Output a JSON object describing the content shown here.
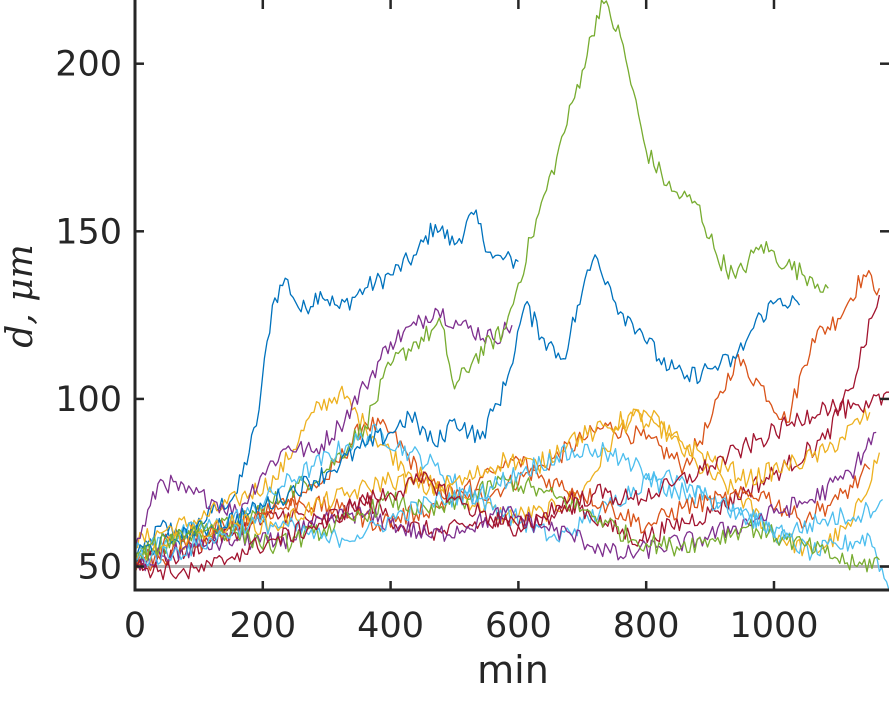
{
  "chart_data": {
    "type": "line",
    "xlabel": "min",
    "ylabel": "d, μm",
    "xlim": [
      0,
      1180
    ],
    "ylim": [
      43,
      219
    ],
    "xticks": [
      0,
      200,
      400,
      600,
      800,
      1000
    ],
    "yticks": [
      50,
      100,
      150,
      200
    ],
    "xtick_labels": [
      "0",
      "200",
      "400",
      "600",
      "800",
      "1000"
    ],
    "ytick_labels": [
      "50",
      "100",
      "150",
      "200"
    ],
    "grid": false,
    "legend": "none",
    "baseline": {
      "y": 50,
      "color": "#b0b0b0"
    },
    "series": [
      {
        "color": "#0072BD",
        "points": [
          [
            0,
            50
          ],
          [
            40,
            62
          ],
          [
            80,
            60
          ],
          [
            120,
            66
          ],
          [
            160,
            72
          ],
          [
            190,
            92
          ],
          [
            215,
            128
          ],
          [
            235,
            136
          ],
          [
            260,
            126
          ],
          [
            290,
            132
          ],
          [
            320,
            127
          ],
          [
            360,
            133
          ],
          [
            400,
            137
          ],
          [
            440,
            143
          ],
          [
            470,
            152
          ],
          [
            500,
            146
          ],
          [
            530,
            155
          ],
          [
            560,
            142
          ],
          [
            600,
            141
          ]
        ]
      },
      {
        "color": "#D95319",
        "points": [
          [
            0,
            52
          ],
          [
            60,
            58
          ],
          [
            120,
            62
          ],
          [
            180,
            64
          ],
          [
            240,
            70
          ],
          [
            300,
            76
          ],
          [
            360,
            93
          ],
          [
            400,
            90
          ],
          [
            460,
            74
          ],
          [
            520,
            70
          ],
          [
            580,
            74
          ],
          [
            640,
            80
          ],
          [
            700,
            88
          ],
          [
            740,
            92
          ],
          [
            800,
            88
          ],
          [
            860,
            80
          ],
          [
            900,
            93
          ],
          [
            940,
            112
          ],
          [
            980,
            104
          ],
          [
            1020,
            93
          ],
          [
            1060,
            118
          ],
          [
            1100,
            124
          ],
          [
            1140,
            137
          ],
          [
            1165,
            133
          ]
        ]
      },
      {
        "color": "#EDB120",
        "points": [
          [
            0,
            57
          ],
          [
            50,
            61
          ],
          [
            100,
            64
          ],
          [
            160,
            70
          ],
          [
            220,
            76
          ],
          [
            280,
            96
          ],
          [
            320,
            102
          ],
          [
            360,
            92
          ],
          [
            420,
            80
          ],
          [
            470,
            74
          ],
          [
            520,
            70
          ],
          [
            580,
            65
          ],
          [
            640,
            66
          ],
          [
            700,
            72
          ],
          [
            760,
            92
          ],
          [
            800,
            96
          ],
          [
            840,
            88
          ],
          [
            880,
            80
          ],
          [
            940,
            72
          ],
          [
            1000,
            60
          ],
          [
            1060,
            54
          ],
          [
            1120,
            62
          ],
          [
            1165,
            84
          ]
        ]
      },
      {
        "color": "#7E2F8E",
        "points": [
          [
            0,
            55
          ],
          [
            40,
            76
          ],
          [
            80,
            72
          ],
          [
            120,
            70
          ],
          [
            160,
            66
          ],
          [
            200,
            78
          ],
          [
            240,
            86
          ],
          [
            280,
            84
          ],
          [
            320,
            92
          ],
          [
            360,
            104
          ],
          [
            400,
            117
          ],
          [
            440,
            122
          ],
          [
            470,
            127
          ],
          [
            510,
            122
          ],
          [
            560,
            118
          ],
          [
            590,
            122
          ]
        ]
      },
      {
        "color": "#77AC30",
        "points": [
          [
            0,
            53
          ],
          [
            80,
            59
          ],
          [
            160,
            63
          ],
          [
            240,
            72
          ],
          [
            300,
            79
          ],
          [
            360,
            92
          ],
          [
            400,
            110
          ],
          [
            440,
            117
          ],
          [
            480,
            122
          ],
          [
            500,
            103
          ],
          [
            530,
            112
          ],
          [
            580,
            121
          ],
          [
            620,
            148
          ],
          [
            660,
            172
          ],
          [
            700,
            198
          ],
          [
            730,
            219
          ],
          [
            760,
            208
          ],
          [
            800,
            174
          ],
          [
            840,
            162
          ],
          [
            880,
            158
          ],
          [
            910,
            143
          ],
          [
            940,
            136
          ],
          [
            980,
            146
          ],
          [
            1020,
            140
          ],
          [
            1060,
            136
          ],
          [
            1085,
            133
          ]
        ]
      },
      {
        "color": "#4DBEEE",
        "points": [
          [
            0,
            54
          ],
          [
            60,
            59
          ],
          [
            120,
            62
          ],
          [
            180,
            66
          ],
          [
            230,
            74
          ],
          [
            280,
            80
          ],
          [
            330,
            86
          ],
          [
            380,
            90
          ],
          [
            430,
            84
          ],
          [
            470,
            80
          ],
          [
            520,
            72
          ],
          [
            580,
            66
          ],
          [
            620,
            62
          ],
          [
            660,
            58
          ],
          [
            700,
            63
          ],
          [
            740,
            68
          ],
          [
            800,
            76
          ],
          [
            860,
            72
          ],
          [
            920,
            70
          ],
          [
            960,
            66
          ],
          [
            1000,
            60
          ],
          [
            1060,
            54
          ],
          [
            1100,
            56
          ],
          [
            1150,
            59
          ],
          [
            1180,
            43
          ]
        ]
      },
      {
        "color": "#A2142F",
        "points": [
          [
            0,
            51
          ],
          [
            60,
            53
          ],
          [
            120,
            58
          ],
          [
            180,
            62
          ],
          [
            240,
            66
          ],
          [
            300,
            62
          ],
          [
            360,
            70
          ],
          [
            420,
            62
          ],
          [
            480,
            60
          ],
          [
            540,
            63
          ],
          [
            600,
            62
          ],
          [
            640,
            65
          ],
          [
            680,
            70
          ],
          [
            740,
            62
          ],
          [
            790,
            58
          ],
          [
            840,
            62
          ],
          [
            900,
            66
          ],
          [
            960,
            73
          ],
          [
            1020,
            80
          ],
          [
            1080,
            88
          ],
          [
            1120,
            103
          ],
          [
            1165,
            131
          ]
        ]
      },
      {
        "color": "#0072BD",
        "points": [
          [
            0,
            54
          ],
          [
            60,
            58
          ],
          [
            120,
            62
          ],
          [
            180,
            66
          ],
          [
            240,
            72
          ],
          [
            300,
            78
          ],
          [
            360,
            86
          ],
          [
            400,
            90
          ],
          [
            430,
            95
          ],
          [
            470,
            86
          ],
          [
            500,
            94
          ],
          [
            540,
            88
          ],
          [
            580,
            104
          ],
          [
            610,
            128
          ],
          [
            640,
            118
          ],
          [
            670,
            112
          ],
          [
            700,
            132
          ],
          [
            720,
            143
          ],
          [
            740,
            135
          ],
          [
            760,
            126
          ],
          [
            790,
            121
          ],
          [
            820,
            112
          ],
          [
            860,
            106
          ],
          [
            900,
            109
          ],
          [
            940,
            112
          ],
          [
            980,
            125
          ],
          [
            1010,
            130
          ],
          [
            1040,
            128
          ]
        ]
      },
      {
        "color": "#D95319",
        "points": [
          [
            0,
            48
          ],
          [
            40,
            52
          ],
          [
            80,
            56
          ],
          [
            120,
            58
          ],
          [
            160,
            62
          ],
          [
            200,
            66
          ],
          [
            260,
            69
          ],
          [
            320,
            67
          ],
          [
            380,
            63
          ],
          [
            440,
            66
          ],
          [
            500,
            70
          ],
          [
            560,
            78
          ],
          [
            600,
            82
          ],
          [
            640,
            76
          ],
          [
            700,
            72
          ],
          [
            760,
            66
          ],
          [
            800,
            62
          ],
          [
            860,
            68
          ],
          [
            920,
            70
          ],
          [
            980,
            72
          ],
          [
            1040,
            64
          ],
          [
            1100,
            70
          ],
          [
            1150,
            79
          ]
        ]
      },
      {
        "color": "#EDB120",
        "points": [
          [
            0,
            51
          ],
          [
            50,
            56
          ],
          [
            100,
            60
          ],
          [
            160,
            63
          ],
          [
            220,
            62
          ],
          [
            280,
            68
          ],
          [
            340,
            72
          ],
          [
            400,
            76
          ],
          [
            460,
            73
          ],
          [
            520,
            76
          ],
          [
            580,
            82
          ],
          [
            630,
            80
          ],
          [
            680,
            88
          ],
          [
            720,
            90
          ],
          [
            780,
            95
          ],
          [
            840,
            89
          ],
          [
            900,
            82
          ],
          [
            960,
            76
          ],
          [
            1020,
            80
          ],
          [
            1080,
            84
          ],
          [
            1150,
            96
          ]
        ]
      },
      {
        "color": "#7E2F8E",
        "points": [
          [
            0,
            49
          ],
          [
            40,
            53
          ],
          [
            100,
            56
          ],
          [
            160,
            58
          ],
          [
            220,
            57
          ],
          [
            280,
            62
          ],
          [
            340,
            66
          ],
          [
            400,
            63
          ],
          [
            460,
            59
          ],
          [
            520,
            62
          ],
          [
            580,
            66
          ],
          [
            640,
            62
          ],
          [
            700,
            58
          ],
          [
            760,
            53
          ],
          [
            820,
            56
          ],
          [
            880,
            58
          ],
          [
            940,
            62
          ],
          [
            1000,
            66
          ],
          [
            1060,
            70
          ],
          [
            1120,
            78
          ],
          [
            1160,
            90
          ]
        ]
      },
      {
        "color": "#77AC30",
        "points": [
          [
            0,
            52
          ],
          [
            50,
            58
          ],
          [
            100,
            62
          ],
          [
            160,
            60
          ],
          [
            220,
            56
          ],
          [
            280,
            60
          ],
          [
            340,
            64
          ],
          [
            400,
            70
          ],
          [
            460,
            66
          ],
          [
            520,
            70
          ],
          [
            580,
            76
          ],
          [
            640,
            72
          ],
          [
            700,
            67
          ],
          [
            740,
            63
          ],
          [
            780,
            58
          ],
          [
            840,
            56
          ],
          [
            900,
            58
          ],
          [
            960,
            62
          ],
          [
            1020,
            58
          ],
          [
            1080,
            54
          ],
          [
            1130,
            50
          ],
          [
            1165,
            52
          ]
        ]
      },
      {
        "color": "#4DBEEE",
        "points": [
          [
            0,
            52
          ],
          [
            60,
            54
          ],
          [
            120,
            58
          ],
          [
            180,
            63
          ],
          [
            240,
            62
          ],
          [
            300,
            58
          ],
          [
            360,
            60
          ],
          [
            420,
            66
          ],
          [
            480,
            70
          ],
          [
            540,
            72
          ],
          [
            600,
            78
          ],
          [
            660,
            83
          ],
          [
            720,
            85
          ],
          [
            780,
            80
          ],
          [
            840,
            76
          ],
          [
            900,
            70
          ],
          [
            960,
            64
          ],
          [
            1020,
            60
          ],
          [
            1080,
            64
          ],
          [
            1140,
            66
          ],
          [
            1170,
            70
          ]
        ]
      },
      {
        "color": "#A2142F",
        "points": [
          [
            0,
            50
          ],
          [
            40,
            49
          ],
          [
            80,
            48
          ],
          [
            120,
            50
          ],
          [
            160,
            54
          ],
          [
            220,
            58
          ],
          [
            280,
            62
          ],
          [
            340,
            68
          ],
          [
            400,
            72
          ],
          [
            460,
            76
          ],
          [
            500,
            70
          ],
          [
            540,
            66
          ],
          [
            600,
            62
          ],
          [
            660,
            66
          ],
          [
            720,
            72
          ],
          [
            780,
            70
          ],
          [
            840,
            74
          ],
          [
            900,
            80
          ],
          [
            960,
            86
          ],
          [
            1020,
            92
          ],
          [
            1080,
            98
          ],
          [
            1140,
            96
          ],
          [
            1180,
            102
          ]
        ]
      }
    ]
  }
}
